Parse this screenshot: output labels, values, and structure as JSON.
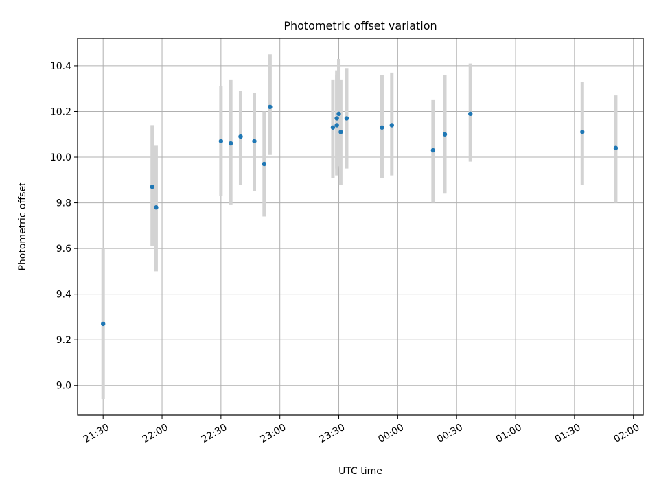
{
  "chart_data": {
    "type": "scatter",
    "title": "Photometric offset variation",
    "xlabel": "UTC time",
    "ylabel": "Photometric offset",
    "x_axis": {
      "type": "time",
      "start": "21:17",
      "end": "02:05",
      "ticks": [
        "21:30",
        "22:00",
        "22:30",
        "23:00",
        "23:30",
        "00:00",
        "00:30",
        "01:00",
        "01:30",
        "02:00"
      ]
    },
    "y_axis": {
      "range": [
        8.87,
        10.52
      ],
      "ticks": [
        "9.0",
        "9.2",
        "9.4",
        "9.6",
        "9.8",
        "10.0",
        "10.2",
        "10.4"
      ]
    },
    "grid": true,
    "series": [
      {
        "color": "#1f77b4",
        "errorbar_color": "#d3d3d3",
        "points": [
          {
            "t": "21:30",
            "y": 9.27,
            "lo": 8.94,
            "hi": 9.6
          },
          {
            "t": "21:55",
            "y": 9.87,
            "lo": 9.61,
            "hi": 10.14
          },
          {
            "t": "21:57",
            "y": 9.78,
            "lo": 9.5,
            "hi": 10.05
          },
          {
            "t": "22:30",
            "y": 10.07,
            "lo": 9.83,
            "hi": 10.31
          },
          {
            "t": "22:35",
            "y": 10.06,
            "lo": 9.79,
            "hi": 10.34
          },
          {
            "t": "22:40",
            "y": 10.09,
            "lo": 9.88,
            "hi": 10.29
          },
          {
            "t": "22:47",
            "y": 10.07,
            "lo": 9.85,
            "hi": 10.28
          },
          {
            "t": "22:52",
            "y": 9.97,
            "lo": 9.74,
            "hi": 10.2
          },
          {
            "t": "22:55",
            "y": 10.22,
            "lo": 10.01,
            "hi": 10.45
          },
          {
            "t": "23:27",
            "y": 10.13,
            "lo": 9.91,
            "hi": 10.34
          },
          {
            "t": "23:29",
            "y": 10.17,
            "lo": 9.95,
            "hi": 10.38
          },
          {
            "t": "23:29",
            "y": 10.14,
            "lo": 9.92,
            "hi": 10.36
          },
          {
            "t": "23:30",
            "y": 10.19,
            "lo": 9.96,
            "hi": 10.43
          },
          {
            "t": "23:31",
            "y": 10.11,
            "lo": 9.88,
            "hi": 10.34
          },
          {
            "t": "23:34",
            "y": 10.17,
            "lo": 9.95,
            "hi": 10.39
          },
          {
            "t": "23:52",
            "y": 10.13,
            "lo": 9.91,
            "hi": 10.36
          },
          {
            "t": "23:57",
            "y": 10.14,
            "lo": 9.92,
            "hi": 10.37
          },
          {
            "t": "00:18",
            "y": 10.03,
            "lo": 9.8,
            "hi": 10.25
          },
          {
            "t": "00:24",
            "y": 10.1,
            "lo": 9.84,
            "hi": 10.36
          },
          {
            "t": "00:37",
            "y": 10.19,
            "lo": 9.98,
            "hi": 10.41
          },
          {
            "t": "01:34",
            "y": 10.11,
            "lo": 9.88,
            "hi": 10.33
          },
          {
            "t": "01:51",
            "y": 10.04,
            "lo": 9.8,
            "hi": 10.27
          }
        ]
      }
    ]
  }
}
